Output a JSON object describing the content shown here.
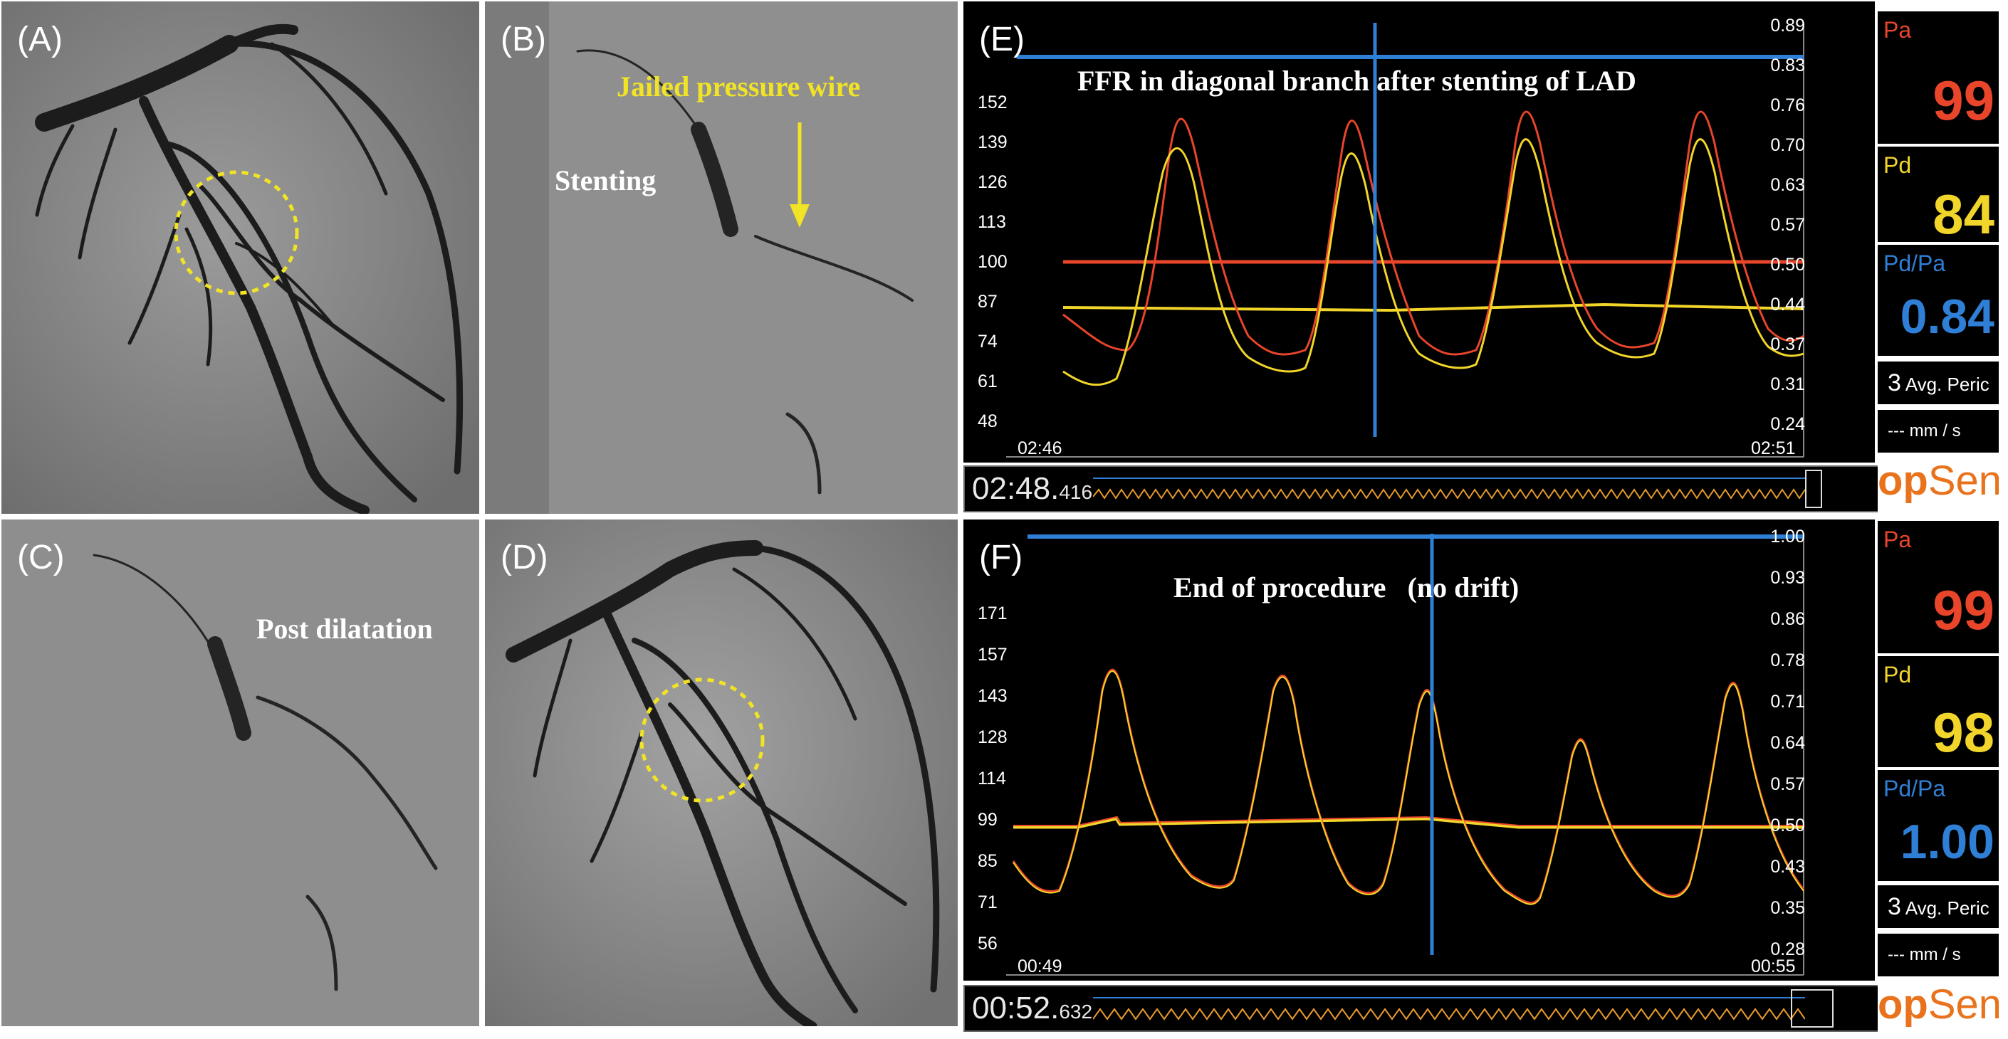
{
  "panels": {
    "A": {
      "letter": "(A)"
    },
    "B": {
      "letter": "(B)",
      "annotation_stenting": "Stenting",
      "annotation_wire": "Jailed pressure wire"
    },
    "C": {
      "letter": "(C)",
      "annotation": "Post dilatation"
    },
    "D": {
      "letter": "(D)"
    }
  },
  "monitors": [
    {
      "letter": "(E)",
      "title": "FFR in diagonal branch after stenting of LAD",
      "left_ticks": [
        "152",
        "139",
        "126",
        "113",
        "100",
        "87",
        "74",
        "61",
        "48"
      ],
      "right_ticks": [
        "0.89",
        "0.83",
        "0.76",
        "0.70",
        "0.63",
        "0.57",
        "0.50",
        "0.44",
        "0.37",
        "0.31",
        "0.24"
      ],
      "time_start": "02:46",
      "time_end": "02:51",
      "clock_main": "02:48.",
      "clock_ms": "416",
      "pa_label": "Pa",
      "pa_value": "99",
      "pd_label": "Pd",
      "pd_value": "84",
      "ratio_label": "Pd/Pa",
      "ratio_value": "0.84",
      "avg_num": "3",
      "avg_text": "Avg. Peric",
      "speed_text": "--- mm / s",
      "logo_op": "op",
      "logo_sens": "Sens"
    },
    {
      "letter": "(F)",
      "title_main": "End of procedure",
      "title_note": "(no drift)",
      "left_ticks": [
        "171",
        "157",
        "143",
        "128",
        "114",
        "99",
        "85",
        "71",
        "56"
      ],
      "right_ticks": [
        "1.00",
        "0.93",
        "0.86",
        "0.78",
        "0.71",
        "0.64",
        "0.57",
        "0.50",
        "0.43",
        "0.35",
        "0.28"
      ],
      "time_start": "00:49",
      "time_end": "00:55",
      "clock_main": "00:52.",
      "clock_ms": "632",
      "pa_label": "Pa",
      "pa_value": "99",
      "pd_label": "Pd",
      "pd_value": "98",
      "ratio_label": "Pd/Pa",
      "ratio_value": "1.00",
      "avg_num": "3",
      "avg_text": "Avg. Peric",
      "speed_text": "--- mm / s",
      "logo_op": "op",
      "logo_sens": "Sens"
    }
  ],
  "colors": {
    "pa": "#e8452b",
    "pd": "#f1d52a",
    "ratio": "#2f7fd6",
    "ffr_trace": "#2f7fd6",
    "annotation_yellow": "#f1e325"
  }
}
